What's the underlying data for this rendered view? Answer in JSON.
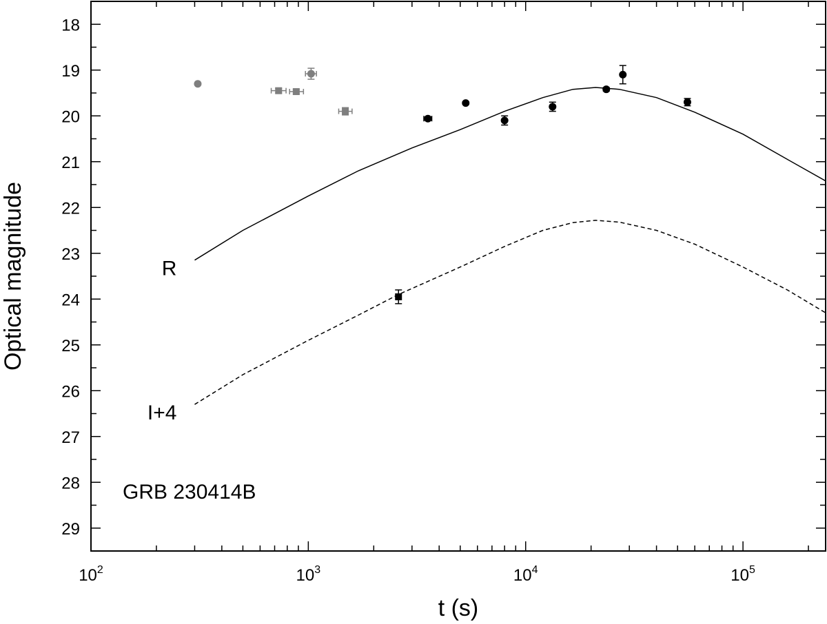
{
  "chart_data": {
    "type": "scatter",
    "xlabel": "t (s)",
    "ylabel": "Optical magnitude",
    "annotation": "GRB 230414B",
    "x_scale": "log",
    "xlim": [
      100,
      240000
    ],
    "ylim": [
      29.5,
      17.5
    ],
    "y_inverted": true,
    "x_ticks": [
      {
        "base": "10",
        "exp": "2",
        "value": 100
      },
      {
        "base": "10",
        "exp": "3",
        "value": 1000
      },
      {
        "base": "10",
        "exp": "4",
        "value": 10000
      },
      {
        "base": "10",
        "exp": "5",
        "value": 100000
      }
    ],
    "y_ticks": [
      "18",
      "19",
      "20",
      "21",
      "22",
      "23",
      "24",
      "25",
      "26",
      "27",
      "28",
      "29"
    ],
    "grid": false,
    "colors": {
      "black": "#000000",
      "gray": "#7f7f7f"
    },
    "series": [
      {
        "label": "R",
        "style": "solid",
        "label_anchor": {
          "x": 300,
          "y": 23.3
        },
        "curve": [
          {
            "x": 300,
            "y": 23.15
          },
          {
            "x": 500,
            "y": 22.5
          },
          {
            "x": 1000,
            "y": 21.75
          },
          {
            "x": 1700,
            "y": 21.2
          },
          {
            "x": 3000,
            "y": 20.7
          },
          {
            "x": 5000,
            "y": 20.3
          },
          {
            "x": 8000,
            "y": 19.9
          },
          {
            "x": 12000,
            "y": 19.6
          },
          {
            "x": 16500,
            "y": 19.42
          },
          {
            "x": 21000,
            "y": 19.38
          },
          {
            "x": 27000,
            "y": 19.42
          },
          {
            "x": 40000,
            "y": 19.6
          },
          {
            "x": 60000,
            "y": 19.92
          },
          {
            "x": 100000,
            "y": 20.4
          },
          {
            "x": 160000,
            "y": 20.95
          },
          {
            "x": 240000,
            "y": 21.42
          }
        ]
      },
      {
        "label": "I+4",
        "style": "dashed",
        "label_anchor": {
          "x": 300,
          "y": 26.45
        },
        "curve": [
          {
            "x": 300,
            "y": 26.3
          },
          {
            "x": 500,
            "y": 25.65
          },
          {
            "x": 1000,
            "y": 24.9
          },
          {
            "x": 1700,
            "y": 24.35
          },
          {
            "x": 2600,
            "y": 23.9
          },
          {
            "x": 5000,
            "y": 23.3
          },
          {
            "x": 8000,
            "y": 22.85
          },
          {
            "x": 12000,
            "y": 22.5
          },
          {
            "x": 16500,
            "y": 22.33
          },
          {
            "x": 21000,
            "y": 22.28
          },
          {
            "x": 27000,
            "y": 22.32
          },
          {
            "x": 40000,
            "y": 22.5
          },
          {
            "x": 60000,
            "y": 22.8
          },
          {
            "x": 100000,
            "y": 23.3
          },
          {
            "x": 160000,
            "y": 23.8
          },
          {
            "x": 240000,
            "y": 24.3
          }
        ]
      }
    ],
    "points": [
      {
        "x": 310,
        "y": 19.3,
        "color": "gray",
        "marker": "circle"
      },
      {
        "x": 730,
        "y": 19.45,
        "color": "gray",
        "marker": "square",
        "xerr": [
          55,
          60
        ],
        "yerr": 0.05
      },
      {
        "x": 880,
        "y": 19.47,
        "color": "gray",
        "marker": "square",
        "xerr": [
          60,
          70
        ],
        "yerr": 0.05
      },
      {
        "x": 1030,
        "y": 19.08,
        "color": "gray",
        "marker": "circle",
        "xerr": [
          60,
          60
        ],
        "yerr": 0.12
      },
      {
        "x": 1480,
        "y": 19.9,
        "color": "gray",
        "marker": "square",
        "xerr": [
          100,
          110
        ],
        "yerr": 0.08
      },
      {
        "x": 3550,
        "y": 20.06,
        "color": "black",
        "marker": "circle",
        "xerr": [
          150,
          150
        ],
        "yerr": 0.04
      },
      {
        "x": 5300,
        "y": 19.72,
        "color": "black",
        "marker": "circle",
        "yerr": 0.03
      },
      {
        "x": 8000,
        "y": 20.1,
        "color": "black",
        "marker": "circle",
        "yerr": 0.1
      },
      {
        "x": 13300,
        "y": 19.8,
        "color": "black",
        "marker": "circle",
        "yerr": 0.1
      },
      {
        "x": 23500,
        "y": 19.42,
        "color": "black",
        "marker": "circle",
        "yerr": 0.04
      },
      {
        "x": 28000,
        "y": 19.1,
        "color": "black",
        "marker": "circle",
        "yerr": 0.2
      },
      {
        "x": 55500,
        "y": 19.7,
        "color": "black",
        "marker": "circle",
        "yerr": 0.08
      },
      {
        "x": 2600,
        "y": 23.95,
        "color": "black",
        "marker": "square",
        "yerr": 0.15
      }
    ]
  }
}
